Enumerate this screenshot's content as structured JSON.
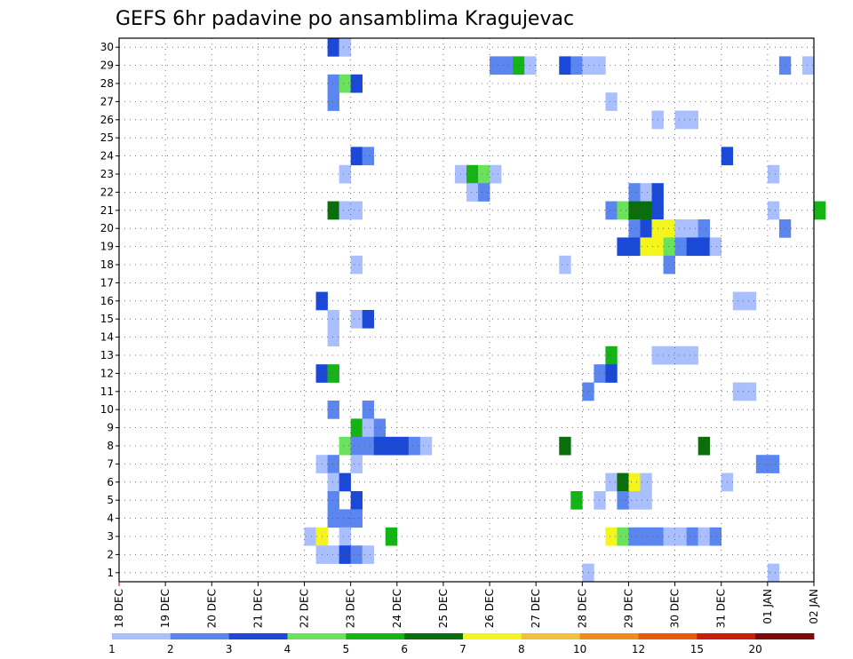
{
  "chart_data": {
    "type": "heatmap",
    "title": "GEFS 6hr padavine po ansamblima Kragujevac",
    "xlabel": "",
    "ylabel": "",
    "x_ticks": [
      "18 DEC",
      "19 DEC",
      "20 DEC",
      "21 DEC",
      "22 DEC",
      "23 DEC",
      "24 DEC",
      "25 DEC",
      "26 DEC",
      "27 DEC",
      "28 DEC",
      "29 DEC",
      "30 DEC",
      "31 DEC",
      "01 JAN",
      "02 JAN"
    ],
    "y_ticks": [
      "1",
      "2",
      "3",
      "4",
      "5",
      "6",
      "7",
      "8",
      "9",
      "10",
      "11",
      "12",
      "13",
      "14",
      "15",
      "16",
      "17",
      "18",
      "19",
      "20",
      "21",
      "22",
      "23",
      "24",
      "25",
      "26",
      "27",
      "28",
      "29",
      "30"
    ],
    "xlim": [
      0,
      60
    ],
    "ylim": [
      0.5,
      30.5
    ],
    "time_step": "6hr",
    "grid": true,
    "legend_placement": "bottom",
    "color_bins": [
      {
        "label": "1",
        "color": "#aabfff"
      },
      {
        "label": "2",
        "color": "#5b86f0"
      },
      {
        "label": "3",
        "color": "#1a49d8"
      },
      {
        "label": "4",
        "color": "#6be25c"
      },
      {
        "label": "5",
        "color": "#14b414"
      },
      {
        "label": "6",
        "color": "#0a6e0a"
      },
      {
        "label": "7",
        "color": "#f5f51e"
      },
      {
        "label": "8",
        "color": "#f5be3c"
      },
      {
        "label": "10",
        "color": "#f08c1e"
      },
      {
        "label": "12",
        "color": "#e65a0a"
      },
      {
        "label": "15",
        "color": "#c81e0a"
      },
      {
        "label": "20",
        "color": "#7d0a0a"
      }
    ],
    "cells": [
      [
        18,
        30,
        2
      ],
      [
        19,
        30,
        0
      ],
      [
        32,
        29,
        1
      ],
      [
        33,
        29,
        1
      ],
      [
        34,
        29,
        4
      ],
      [
        35,
        29,
        0
      ],
      [
        38,
        29,
        2
      ],
      [
        39,
        29,
        1
      ],
      [
        40,
        29,
        0
      ],
      [
        41,
        29,
        0
      ],
      [
        57,
        29,
        1
      ],
      [
        59,
        29,
        0
      ],
      [
        18,
        28,
        1
      ],
      [
        19,
        28,
        3
      ],
      [
        20,
        28,
        2
      ],
      [
        18,
        27,
        1
      ],
      [
        42,
        27,
        0
      ],
      [
        46,
        26,
        0
      ],
      [
        48,
        26,
        0
      ],
      [
        49,
        26,
        0
      ],
      [
        20,
        24,
        2
      ],
      [
        21,
        24,
        1
      ],
      [
        52,
        24,
        2
      ],
      [
        19,
        23,
        0
      ],
      [
        29,
        23,
        0
      ],
      [
        30,
        23,
        4
      ],
      [
        31,
        23,
        3
      ],
      [
        32,
        23,
        0
      ],
      [
        56,
        23,
        0
      ],
      [
        30,
        22,
        0
      ],
      [
        31,
        22,
        1
      ],
      [
        44,
        22,
        1
      ],
      [
        45,
        22,
        0
      ],
      [
        46,
        22,
        2
      ],
      [
        18,
        21,
        5
      ],
      [
        19,
        21,
        0
      ],
      [
        20,
        21,
        0
      ],
      [
        42,
        21,
        1
      ],
      [
        43,
        21,
        3
      ],
      [
        44,
        21,
        5
      ],
      [
        45,
        21,
        5
      ],
      [
        46,
        21,
        2
      ],
      [
        56,
        21,
        0
      ],
      [
        60,
        21,
        4
      ],
      [
        44,
        20,
        1
      ],
      [
        45,
        20,
        2
      ],
      [
        46,
        20,
        6
      ],
      [
        47,
        20,
        6
      ],
      [
        48,
        20,
        0
      ],
      [
        49,
        20,
        0
      ],
      [
        50,
        20,
        1
      ],
      [
        57,
        20,
        1
      ],
      [
        43,
        19,
        2
      ],
      [
        44,
        19,
        2
      ],
      [
        45,
        19,
        6
      ],
      [
        46,
        19,
        6
      ],
      [
        47,
        19,
        3
      ],
      [
        48,
        19,
        1
      ],
      [
        49,
        19,
        2
      ],
      [
        50,
        19,
        2
      ],
      [
        51,
        19,
        0
      ],
      [
        20,
        18,
        0
      ],
      [
        38,
        18,
        0
      ],
      [
        47,
        18,
        1
      ],
      [
        17,
        16,
        2
      ],
      [
        53,
        16,
        0
      ],
      [
        54,
        16,
        0
      ],
      [
        18,
        15,
        0
      ],
      [
        20,
        15,
        0
      ],
      [
        21,
        15,
        2
      ],
      [
        18,
        14,
        0
      ],
      [
        42,
        13,
        4
      ],
      [
        46,
        13,
        0
      ],
      [
        47,
        13,
        0
      ],
      [
        48,
        13,
        0
      ],
      [
        49,
        13,
        0
      ],
      [
        17,
        12,
        2
      ],
      [
        18,
        12,
        4
      ],
      [
        41,
        12,
        1
      ],
      [
        42,
        12,
        2
      ],
      [
        40,
        11,
        1
      ],
      [
        53,
        11,
        0
      ],
      [
        54,
        11,
        0
      ],
      [
        18,
        10,
        1
      ],
      [
        21,
        10,
        1
      ],
      [
        20,
        9,
        4
      ],
      [
        21,
        9,
        0
      ],
      [
        22,
        9,
        1
      ],
      [
        19,
        8,
        3
      ],
      [
        20,
        8,
        1
      ],
      [
        21,
        8,
        1
      ],
      [
        22,
        8,
        2
      ],
      [
        23,
        8,
        2
      ],
      [
        24,
        8,
        2
      ],
      [
        25,
        8,
        1
      ],
      [
        26,
        8,
        0
      ],
      [
        38,
        8,
        5
      ],
      [
        50,
        8,
        5
      ],
      [
        17,
        7,
        0
      ],
      [
        18,
        7,
        1
      ],
      [
        20,
        7,
        0
      ],
      [
        55,
        7,
        1
      ],
      [
        56,
        7,
        1
      ],
      [
        18,
        6,
        0
      ],
      [
        19,
        6,
        2
      ],
      [
        42,
        6,
        0
      ],
      [
        43,
        6,
        5
      ],
      [
        44,
        6,
        6
      ],
      [
        45,
        6,
        0
      ],
      [
        52,
        6,
        0
      ],
      [
        18,
        5,
        1
      ],
      [
        20,
        5,
        2
      ],
      [
        39,
        5,
        4
      ],
      [
        41,
        5,
        0
      ],
      [
        43,
        5,
        1
      ],
      [
        44,
        5,
        0
      ],
      [
        45,
        5,
        0
      ],
      [
        18,
        4,
        1
      ],
      [
        19,
        4,
        1
      ],
      [
        20,
        4,
        1
      ],
      [
        16,
        3,
        0
      ],
      [
        17,
        3,
        6
      ],
      [
        19,
        3,
        0
      ],
      [
        23,
        3,
        4
      ],
      [
        42,
        3,
        6
      ],
      [
        43,
        3,
        3
      ],
      [
        44,
        3,
        1
      ],
      [
        45,
        3,
        1
      ],
      [
        46,
        3,
        1
      ],
      [
        47,
        3,
        0
      ],
      [
        48,
        3,
        0
      ],
      [
        49,
        3,
        1
      ],
      [
        50,
        3,
        0
      ],
      [
        51,
        3,
        1
      ],
      [
        17,
        2,
        0
      ],
      [
        18,
        2,
        0
      ],
      [
        19,
        2,
        2
      ],
      [
        20,
        2,
        1
      ],
      [
        21,
        2,
        0
      ],
      [
        40,
        1,
        0
      ],
      [
        56,
        1,
        0
      ]
    ]
  }
}
